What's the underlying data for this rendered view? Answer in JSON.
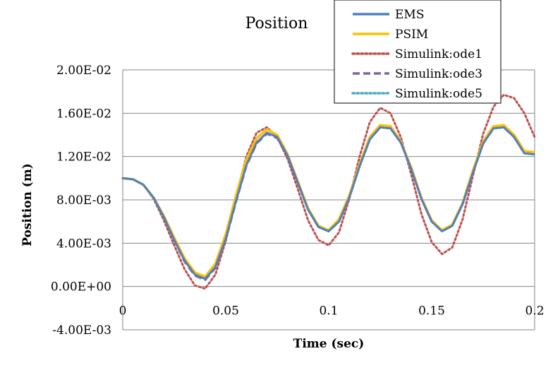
{
  "chart_data": {
    "type": "line",
    "title": "Position",
    "xlabel": "Time (sec)",
    "ylabel": "Position (m)",
    "xlim": [
      0,
      0.2
    ],
    "ylim": [
      -0.004,
      0.02
    ],
    "x_ticks": [
      0,
      0.05,
      0.1,
      0.15,
      0.2
    ],
    "x_tick_labels": [
      "0",
      "0.05",
      "0.1",
      "0.15",
      "0.2"
    ],
    "y_ticks": [
      -0.004,
      0,
      0.004,
      0.008,
      0.012,
      0.016,
      0.02
    ],
    "y_tick_labels": [
      "-4.00E-03",
      "0.00E+00",
      "4.00E-03",
      "8.00E-03",
      "1.20E-02",
      "1.60E-02",
      "2.00E-02"
    ],
    "grid": true,
    "legend_position": "top-right",
    "series": [
      {
        "name": "EMS",
        "color": "#4F81BD",
        "style": "solid",
        "x": [
          0,
          0.005,
          0.01,
          0.015,
          0.02,
          0.025,
          0.03,
          0.035,
          0.04,
          0.045,
          0.05,
          0.055,
          0.06,
          0.065,
          0.07,
          0.075,
          0.08,
          0.085,
          0.09,
          0.095,
          0.1,
          0.105,
          0.11,
          0.115,
          0.12,
          0.125,
          0.13,
          0.135,
          0.14,
          0.145,
          0.15,
          0.155,
          0.16,
          0.165,
          0.17,
          0.175,
          0.18,
          0.185,
          0.19,
          0.195,
          0.2
        ],
        "values": [
          0.01,
          0.0099,
          0.0094,
          0.0082,
          0.0064,
          0.0043,
          0.0024,
          0.0011,
          0.0007,
          0.0018,
          0.0044,
          0.0079,
          0.0112,
          0.0133,
          0.0142,
          0.0138,
          0.0121,
          0.0096,
          0.0071,
          0.0055,
          0.0051,
          0.006,
          0.0082,
          0.0111,
          0.0136,
          0.0147,
          0.0146,
          0.0133,
          0.0109,
          0.0081,
          0.006,
          0.0051,
          0.0056,
          0.0076,
          0.0105,
          0.0132,
          0.0146,
          0.0147,
          0.0138,
          0.0123,
          0.0122
        ]
      },
      {
        "name": "PSIM",
        "color": "#FFC000",
        "style": "solid",
        "x": [
          0,
          0.005,
          0.01,
          0.015,
          0.02,
          0.025,
          0.03,
          0.035,
          0.04,
          0.045,
          0.05,
          0.055,
          0.06,
          0.065,
          0.07,
          0.075,
          0.08,
          0.085,
          0.09,
          0.095,
          0.1,
          0.105,
          0.11,
          0.115,
          0.12,
          0.125,
          0.13,
          0.135,
          0.14,
          0.145,
          0.15,
          0.155,
          0.16,
          0.165,
          0.17,
          0.175,
          0.18,
          0.185,
          0.19,
          0.195,
          0.2
        ],
        "values": [
          0.01,
          0.0099,
          0.0094,
          0.0082,
          0.0065,
          0.0045,
          0.0026,
          0.0013,
          0.0009,
          0.0021,
          0.0048,
          0.0084,
          0.0117,
          0.0137,
          0.0145,
          0.014,
          0.0122,
          0.0097,
          0.0072,
          0.0056,
          0.0052,
          0.0062,
          0.0084,
          0.0113,
          0.0138,
          0.0149,
          0.0148,
          0.0134,
          0.011,
          0.0082,
          0.0061,
          0.0052,
          0.0057,
          0.0077,
          0.0107,
          0.0134,
          0.0148,
          0.0149,
          0.014,
          0.0125,
          0.0124
        ]
      },
      {
        "name": "Simulink:ode1",
        "color": "#C0504D",
        "style": "dotted",
        "x": [
          0,
          0.005,
          0.01,
          0.015,
          0.02,
          0.025,
          0.03,
          0.035,
          0.04,
          0.045,
          0.05,
          0.055,
          0.06,
          0.065,
          0.07,
          0.075,
          0.08,
          0.085,
          0.09,
          0.095,
          0.1,
          0.105,
          0.11,
          0.115,
          0.12,
          0.125,
          0.13,
          0.135,
          0.14,
          0.145,
          0.15,
          0.155,
          0.16,
          0.165,
          0.17,
          0.175,
          0.18,
          0.185,
          0.19,
          0.195,
          0.2
        ],
        "values": [
          0.01,
          0.0099,
          0.0094,
          0.0081,
          0.0061,
          0.0038,
          0.0016,
          0.0001,
          -0.0002,
          0.0011,
          0.0042,
          0.0082,
          0.012,
          0.0142,
          0.0147,
          0.0138,
          0.0118,
          0.009,
          0.0061,
          0.0043,
          0.0038,
          0.005,
          0.0081,
          0.012,
          0.0152,
          0.0165,
          0.016,
          0.0138,
          0.0104,
          0.0067,
          0.0041,
          0.003,
          0.0036,
          0.0062,
          0.0102,
          0.0141,
          0.0166,
          0.0177,
          0.0174,
          0.016,
          0.0138
        ]
      },
      {
        "name": "Simulink:ode3",
        "color": "#8064A2",
        "style": "dashed",
        "x": [
          0,
          0.005,
          0.01,
          0.015,
          0.02,
          0.025,
          0.03,
          0.035,
          0.04,
          0.045,
          0.05,
          0.055,
          0.06,
          0.065,
          0.07,
          0.075,
          0.08,
          0.085,
          0.09,
          0.095,
          0.1,
          0.105,
          0.11,
          0.115,
          0.12,
          0.125,
          0.13,
          0.135,
          0.14,
          0.145,
          0.15,
          0.155,
          0.16,
          0.165,
          0.17,
          0.175,
          0.18,
          0.185,
          0.19,
          0.195,
          0.2
        ],
        "values": [
          0.01,
          0.0099,
          0.0094,
          0.0082,
          0.0064,
          0.0043,
          0.0023,
          0.001,
          0.0006,
          0.0017,
          0.0043,
          0.0078,
          0.0111,
          0.0132,
          0.0141,
          0.0137,
          0.012,
          0.0096,
          0.0071,
          0.0055,
          0.0051,
          0.006,
          0.0082,
          0.0111,
          0.0136,
          0.0147,
          0.0146,
          0.0133,
          0.0109,
          0.0081,
          0.006,
          0.0051,
          0.0056,
          0.0076,
          0.0105,
          0.0132,
          0.0146,
          0.0147,
          0.0138,
          0.0123,
          0.0122
        ]
      },
      {
        "name": "Simulink:ode5",
        "color": "#4BACC6",
        "style": "dotted",
        "x": [
          0,
          0.005,
          0.01,
          0.015,
          0.02,
          0.025,
          0.03,
          0.035,
          0.04,
          0.045,
          0.05,
          0.055,
          0.06,
          0.065,
          0.07,
          0.075,
          0.08,
          0.085,
          0.09,
          0.095,
          0.1,
          0.105,
          0.11,
          0.115,
          0.12,
          0.125,
          0.13,
          0.135,
          0.14,
          0.145,
          0.15,
          0.155,
          0.16,
          0.165,
          0.17,
          0.175,
          0.18,
          0.185,
          0.19,
          0.195,
          0.2
        ],
        "values": [
          0.01,
          0.0099,
          0.0094,
          0.0082,
          0.0064,
          0.0043,
          0.0024,
          0.0011,
          0.0007,
          0.0018,
          0.0044,
          0.0079,
          0.0112,
          0.0133,
          0.0142,
          0.0138,
          0.0121,
          0.0096,
          0.0071,
          0.0055,
          0.0051,
          0.006,
          0.0082,
          0.0111,
          0.0136,
          0.0147,
          0.0146,
          0.0133,
          0.0109,
          0.0081,
          0.006,
          0.0051,
          0.0056,
          0.0076,
          0.0105,
          0.0132,
          0.0146,
          0.0147,
          0.0138,
          0.0123,
          0.0122
        ]
      }
    ]
  }
}
